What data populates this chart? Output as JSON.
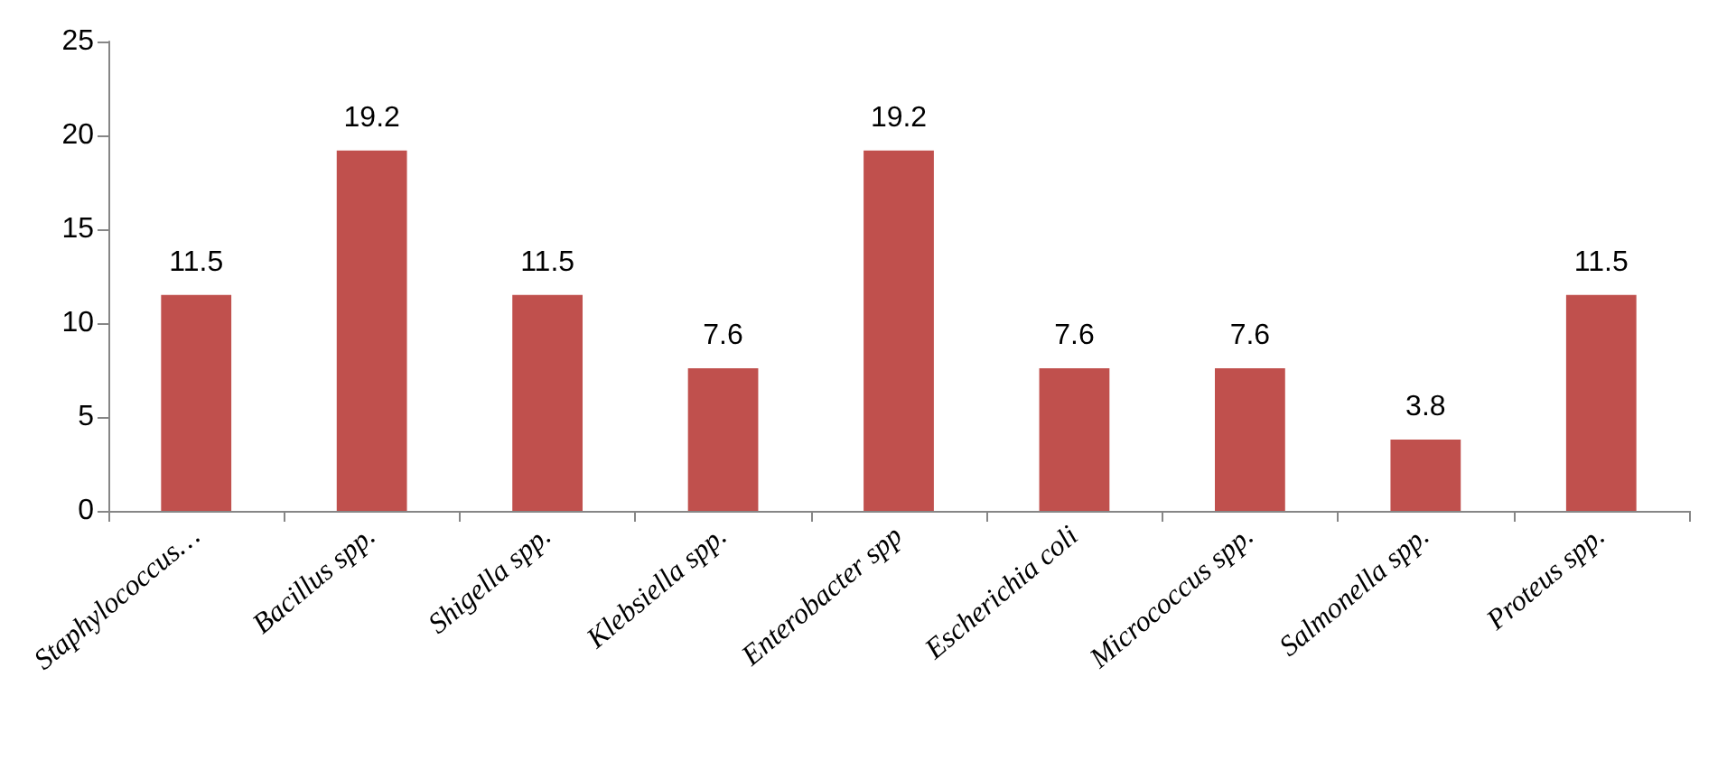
{
  "chart_data": {
    "type": "bar",
    "categories": [
      "Staphylococcus…",
      "Bacillus spp.",
      "Shigella spp.",
      "Klebsiella spp.",
      "Enterobacter spp",
      "Escherichia coli",
      "Micrococcus spp.",
      "Salmonella spp.",
      "Proteus spp."
    ],
    "values": [
      11.5,
      19.2,
      11.5,
      7.6,
      19.2,
      7.6,
      7.6,
      3.8,
      11.5
    ],
    "color": "#c0504d",
    "ylim": [
      0,
      25
    ],
    "yticks": [
      0,
      5,
      10,
      15,
      20,
      25
    ],
    "data_labels": true
  }
}
